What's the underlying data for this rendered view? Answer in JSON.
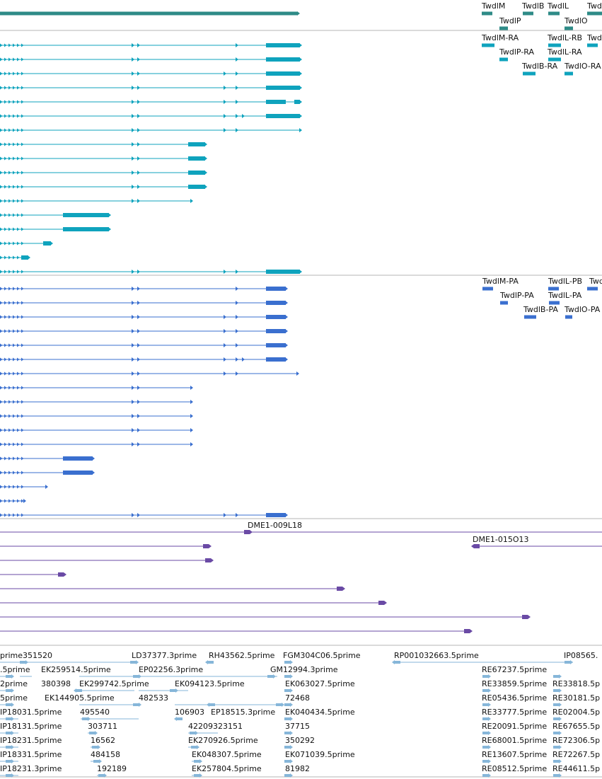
{
  "colors": {
    "gene": "#2e8b87",
    "transcript": "#0fa3bd",
    "protein": "#3a6fcf",
    "clone": "#6a4aa5",
    "est": "#86b6d9"
  },
  "gene_labels": [
    "TwdlM",
    "TwdlB",
    "TwdlL",
    "Twd",
    "TwdlP",
    "TwdlO"
  ],
  "transcript_labels": [
    "TwdlM-RA",
    "TwdlL-RB",
    "Twd",
    "TwdlP-RA",
    "TwdlL-RA",
    "TwdlB-RA",
    "TwdlO-RA"
  ],
  "protein_labels": [
    "TwdlM-PA",
    "TwdlL-PB",
    "Twd",
    "TwdlP-PA",
    "TwdlL-PA",
    "TwdlB-PA",
    "TwdlO-PA"
  ],
  "clone_labels": [
    "DME1-009L18",
    "DME1-015O13"
  ],
  "est_labels": [
    "prime351520",
    "LD37377.3prime",
    "RH43562.5prime",
    "FGM304C06.5prime",
    "RP001032663.5prime",
    "IP08565.",
    ".5prime",
    "EK259514.5prime",
    "EP02256.3prime",
    "GM12994.3prime",
    "RE67237.5prime",
    "2prime",
    "380398",
    "EK299742.5prime",
    "EK094123.5prime",
    "EK063027.5prime",
    "RE33859.5prime",
    "RE33818.5p",
    "5prime",
    "EK144905.5prime",
    "482533",
    "72468",
    "RE05436.5prime",
    "RE30181.5p",
    "IP18031.5prime",
    "495540",
    "106903",
    "EP18515.3prime",
    "EK040434.5prime",
    "RE33777.5prime",
    "RE02004.5p",
    "IP18131.5prime",
    "303711",
    "42209323151",
    "37715",
    "RE20091.5prime",
    "RE67655.5p",
    "IP18231.5prime",
    "16562",
    "EK270926.5prime",
    "350292",
    "RE68001.5prime",
    "RE72306.5p",
    "IP18331.5prime",
    "484158",
    "EK048307.5prime",
    "EK071039.5prime",
    "RE13607.5prime",
    "RE72267.5p",
    "IP18231.3prime",
    "192189",
    "EK257804.5prime",
    "81982",
    "RE08512.5prime",
    "RE44611.5p"
  ]
}
